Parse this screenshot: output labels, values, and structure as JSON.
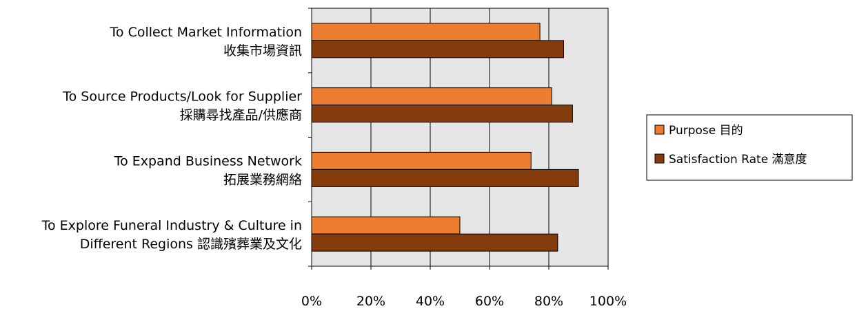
{
  "chart_data": {
    "type": "bar",
    "orientation": "horizontal",
    "categories": [
      {
        "line1": "To Collect Market Information",
        "line2": "收集市場資訊"
      },
      {
        "line1": "To Source Products/Look for Supplier",
        "line2": "採購尋找產品/供應商"
      },
      {
        "line1": "To Expand Business Network",
        "line2": "拓展業務網絡"
      },
      {
        "line1": "To Explore Funeral Industry & Culture in",
        "line2": "Different Regions 認識殯葬業及文化"
      }
    ],
    "series": [
      {
        "name": "Purpose 目的",
        "color": "#ED7D31",
        "values": [
          77,
          81,
          74,
          50
        ]
      },
      {
        "name": "Satisfaction Rate 滿意度",
        "color": "#843C0C",
        "values": [
          85,
          88,
          90,
          83
        ]
      }
    ],
    "x_ticks": [
      "0%",
      "20%",
      "40%",
      "60%",
      "80%",
      "100%"
    ],
    "xlim": [
      0,
      100
    ],
    "grid": true,
    "plot_background": "#E6E6E6",
    "legend_position": "right"
  }
}
